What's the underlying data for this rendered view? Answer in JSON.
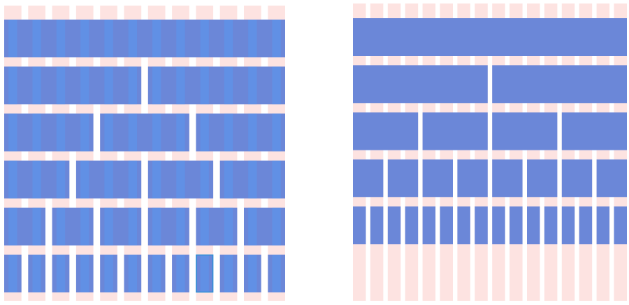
{
  "grids": [
    {
      "columns": 12,
      "rows": [
        1,
        2,
        3,
        4,
        6,
        12
      ]
    },
    {
      "columns": 16,
      "rows": [
        1,
        2,
        4,
        8,
        16
      ]
    }
  ]
}
